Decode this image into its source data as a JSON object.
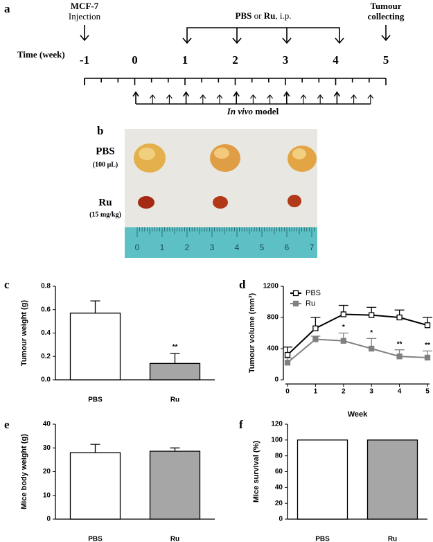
{
  "panel_labels": [
    "a",
    "b",
    "c",
    "d",
    "e",
    "f"
  ],
  "timeline": {
    "injection_title": "MCF-7",
    "injection": "Injection",
    "treatment": [
      "PBS",
      " or ",
      "Ru",
      ", i.p."
    ],
    "collect": [
      "Tumour",
      "collecting"
    ],
    "axis_label": "Time (week)",
    "weeks": [
      -1,
      0,
      1,
      2,
      3,
      4,
      5
    ],
    "model": [
      "In vivo",
      " model"
    ]
  },
  "photo": {
    "rows": [
      {
        "name": "PBS",
        "dose": "(100 μL)"
      },
      {
        "name": "Ru",
        "dose": "(15 mg/kg)"
      }
    ],
    "ruler_labels": [
      0,
      1,
      2,
      3,
      4,
      5,
      6,
      7
    ]
  },
  "chart_data": [
    {
      "type": "bar",
      "ylabel": "Tumour weight (g)",
      "categories": [
        "PBS",
        "Ru"
      ],
      "values": [
        0.57,
        0.14
      ],
      "errors": [
        0.105,
        0.085
      ],
      "colors": [
        "#ffffff",
        "#a6a6a6"
      ],
      "ylim": [
        0,
        0.8
      ],
      "yticks": [
        {
          "value": 0,
          "label": "0.0"
        },
        {
          "value": 0.2,
          "label": "0.2"
        },
        {
          "value": 0.4,
          "label": "0.4"
        },
        {
          "value": 0.6,
          "label": "0.6"
        },
        {
          "value": 0.8,
          "label": "0.8"
        }
      ],
      "annotations": [
        {
          "text": "**",
          "category": 1
        }
      ]
    },
    {
      "type": "line",
      "xlabel": "Week",
      "ylabel": "Tumour volume (mm³)",
      "x": [
        0,
        1,
        2,
        3,
        4,
        5
      ],
      "xlim": [
        0,
        5
      ],
      "xticks": [
        0,
        1,
        2,
        3,
        4,
        5
      ],
      "ylim": [
        0,
        1200
      ],
      "yticks": [
        0,
        400,
        800,
        1200
      ],
      "legend": "upper left",
      "series": [
        {
          "name": "PBS",
          "color": "#000000",
          "marker": "open-square",
          "values": [
            320,
            660,
            840,
            830,
            800,
            700
          ],
          "errors": [
            100,
            140,
            115,
            100,
            95,
            100
          ]
        },
        {
          "name": "Ru",
          "color": "#808080",
          "marker": "filled-square",
          "values": [
            220,
            520,
            500,
            400,
            300,
            285
          ],
          "errors": [
            60,
            40,
            100,
            130,
            85,
            85
          ]
        }
      ],
      "annotations": [
        {
          "text": "*",
          "x": 2
        },
        {
          "text": "*",
          "x": 3
        },
        {
          "text": "**",
          "x": 4
        },
        {
          "text": "**",
          "x": 5
        }
      ]
    },
    {
      "type": "bar",
      "ylabel": "Mice body weight (g)",
      "categories": [
        "PBS",
        "Ru"
      ],
      "values": [
        28,
        28.6
      ],
      "errors": [
        3.5,
        1.4
      ],
      "colors": [
        "#ffffff",
        "#a6a6a6"
      ],
      "ylim": [
        0,
        40
      ],
      "yticks": [
        0,
        10,
        20,
        30,
        40
      ]
    },
    {
      "type": "bar",
      "ylabel": "Mice survival (%)",
      "categories": [
        "PBS",
        "Ru"
      ],
      "values": [
        100,
        100
      ],
      "colors": [
        "#ffffff",
        "#a6a6a6"
      ],
      "ylim": [
        0,
        120
      ],
      "yticks": [
        0,
        20,
        40,
        60,
        80,
        100,
        120
      ]
    }
  ]
}
